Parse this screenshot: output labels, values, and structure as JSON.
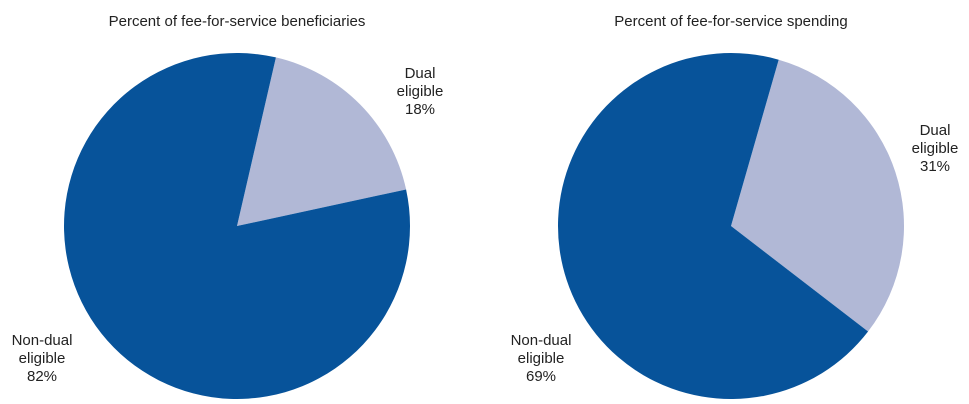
{
  "chart_data": [
    {
      "type": "pie",
      "title": "Percent of fee-for-service beneficiaries",
      "categories": [
        "Dual eligible",
        "Non-dual eligible"
      ],
      "values": [
        18,
        82
      ],
      "value_labels": [
        "18%",
        "82%"
      ],
      "colors": [
        "#b1b8d6",
        "#07539a"
      ]
    },
    {
      "type": "pie",
      "title": "Percent of fee-for-service spending",
      "categories": [
        "Dual eligible",
        "Non-dual eligible"
      ],
      "values": [
        31,
        69
      ],
      "value_labels": [
        "31%",
        "69%"
      ],
      "colors": [
        "#b1b8d6",
        "#07539a"
      ]
    }
  ]
}
